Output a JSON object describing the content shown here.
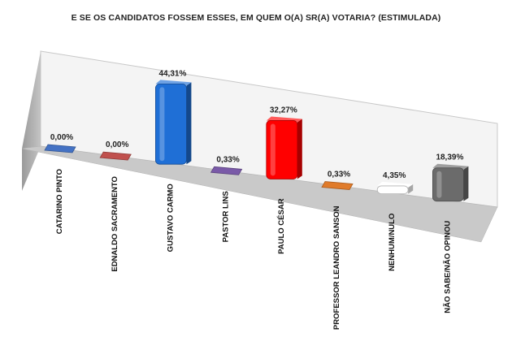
{
  "chart_data": {
    "type": "bar",
    "title": "E SE OS CANDIDATOS FOSSEM ESSES, EM QUEM O(A) SR(A) VOTARIA? (ESTIMULADA)",
    "categories": [
      "CATARINO PINTO",
      "EDNALDO SACRAMENTO",
      "GUSTAVO CARMO",
      "PASTOR LINS",
      "PAULO CÉSAR",
      "PROFESSOR LEANDRO SANSON",
      "NENHUM/NULO",
      "NÃO SABE/NÃO OPINOU"
    ],
    "values": [
      0.0,
      0.0,
      44.31,
      0.33,
      32.27,
      0.33,
      4.35,
      18.39
    ],
    "value_labels": [
      "0,00%",
      "0,00%",
      "44,31%",
      "0,33%",
      "32,27%",
      "0,33%",
      "4,35%",
      "18,39%"
    ],
    "colors": [
      "#4472c4",
      "#c0504d",
      "#1f6fd6",
      "#7a5aa8",
      "#ff0000",
      "#e07b2a",
      "#ffffff",
      "#6b6b6b"
    ],
    "style": "3d-column",
    "grid": false,
    "legend": "none"
  }
}
